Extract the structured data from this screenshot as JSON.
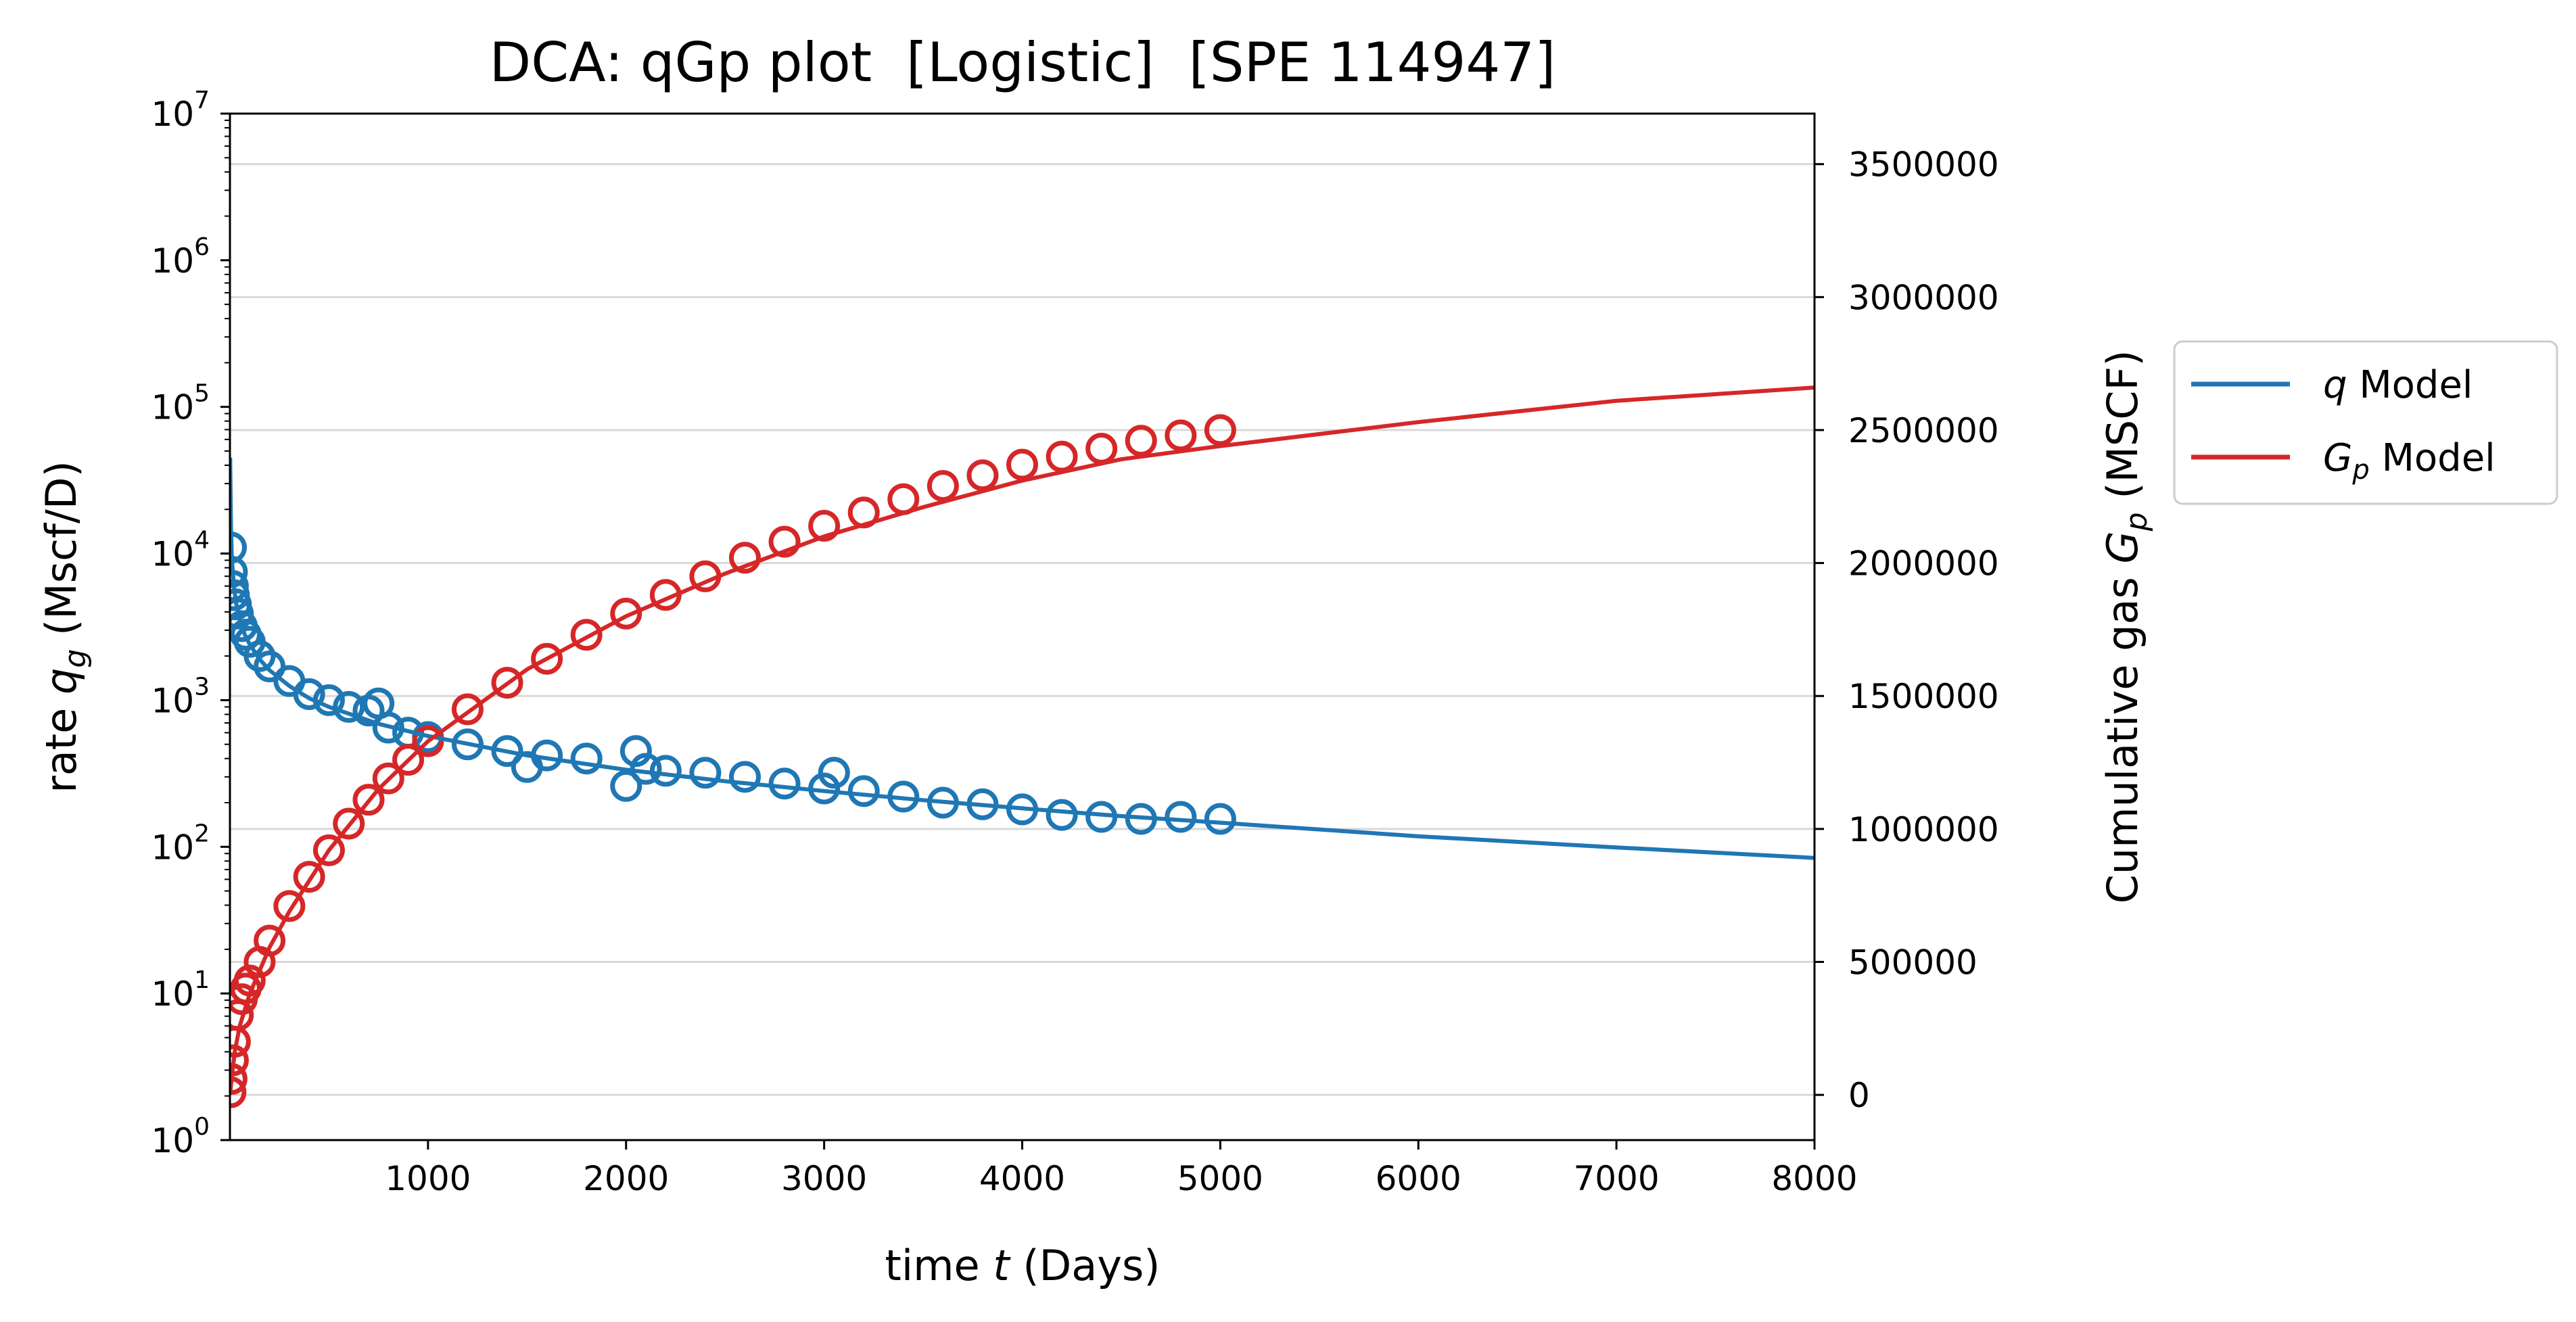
{
  "chart_data": {
    "type": "line",
    "title": "DCA: qGp plot  [Logistic]  [SPE 114947]",
    "xlabel": {
      "pre": "time ",
      "var": "t",
      "post": " (Days)"
    },
    "ylabel_left": {
      "pre": "rate ",
      "var": "q",
      "sub": "g",
      "post": " (Mscf/D)"
    },
    "ylabel_right": {
      "pre": "Cumulative gas ",
      "var": "G",
      "sub": "p",
      "post": " (MSCF)"
    },
    "xlim": [
      0,
      8000
    ],
    "x_ticks": [
      "1000",
      "2000",
      "3000",
      "4000",
      "5000",
      "6000",
      "7000",
      "8000"
    ],
    "y_left_scale": "log",
    "y_left_lim": [
      1,
      10000000
    ],
    "y_left_ticks": [
      {
        "base": "10",
        "exp": "0"
      },
      {
        "base": "10",
        "exp": "1"
      },
      {
        "base": "10",
        "exp": "2"
      },
      {
        "base": "10",
        "exp": "3"
      },
      {
        "base": "10",
        "exp": "4"
      },
      {
        "base": "10",
        "exp": "5"
      },
      {
        "base": "10",
        "exp": "6"
      },
      {
        "base": "10",
        "exp": "7"
      }
    ],
    "y_right_lim": [
      -170000,
      3690000
    ],
    "y_right_ticks": [
      "0",
      "500000",
      "1000000",
      "1500000",
      "2000000",
      "2500000",
      "3000000",
      "3500000"
    ],
    "grid": "horizontal, right axis",
    "legend": {
      "placement": "outside right",
      "entries": [
        {
          "var": "q",
          "sub": "",
          "text": " Model",
          "color": "#1f77b4"
        },
        {
          "var": "G",
          "sub": "p",
          "text": " Model",
          "color": "#d62728"
        }
      ]
    },
    "series": [
      {
        "name": "q Model",
        "axis": "left",
        "kind": "line",
        "color": "#1f77b4",
        "x": [
          1,
          5,
          10,
          20,
          30,
          50,
          75,
          100,
          150,
          200,
          300,
          400,
          500,
          750,
          1000,
          1500,
          2000,
          2500,
          3000,
          3500,
          4000,
          4500,
          5000,
          6000,
          7000,
          8000
        ],
        "y": [
          45000,
          15000,
          9000,
          6000,
          4700,
          3500,
          2800,
          2400,
          1900,
          1600,
          1250,
          1030,
          900,
          690,
          570,
          420,
          335,
          280,
          240,
          208,
          183,
          162,
          146,
          118,
          99,
          84
        ]
      },
      {
        "name": "Gp Model",
        "axis": "right",
        "kind": "line",
        "color": "#d62728",
        "x": [
          0,
          10,
          25,
          50,
          100,
          200,
          300,
          500,
          750,
          1000,
          1500,
          2000,
          2500,
          3000,
          3500,
          4000,
          4500,
          5000,
          6000,
          7000,
          8000
        ],
        "y": [
          0,
          70000,
          165000,
          260000,
          380000,
          555000,
          690000,
          920000,
          1150000,
          1330000,
          1600000,
          1800000,
          1960000,
          2100000,
          2210000,
          2310000,
          2390000,
          2440000,
          2530000,
          2610000,
          2660000
        ]
      },
      {
        "name": "q data",
        "axis": "left",
        "kind": "scatter",
        "color": "#1f77b4",
        "x": [
          5,
          10,
          15,
          20,
          30,
          40,
          60,
          80,
          100,
          150,
          200,
          300,
          400,
          500,
          600,
          700,
          750,
          800,
          900,
          1000,
          1200,
          1400,
          1500,
          1600,
          1800,
          2000,
          2050,
          2100,
          2200,
          2400,
          2600,
          2800,
          3000,
          3050,
          3200,
          3400,
          3600,
          3800,
          4000,
          4200,
          4400,
          4600,
          4800,
          5000
        ],
        "y": [
          11000,
          7500,
          6000,
          5200,
          4500,
          3900,
          3200,
          2800,
          2500,
          2000,
          1700,
          1350,
          1100,
          1000,
          900,
          850,
          950,
          650,
          600,
          560,
          500,
          450,
          350,
          420,
          400,
          260,
          450,
          340,
          330,
          320,
          300,
          270,
          250,
          320,
          240,
          220,
          200,
          195,
          180,
          165,
          160,
          155,
          160,
          155
        ]
      },
      {
        "name": "Gp data",
        "axis": "right",
        "kind": "scatter",
        "color": "#d62728",
        "x": [
          3,
          8,
          15,
          25,
          40,
          60,
          80,
          100,
          150,
          200,
          300,
          400,
          500,
          600,
          700,
          800,
          900,
          1000,
          1200,
          1400,
          1600,
          1800,
          2000,
          2200,
          2400,
          2600,
          2800,
          3000,
          3200,
          3400,
          3600,
          3800,
          4000,
          4200,
          4400,
          4600,
          4800,
          5000
        ],
        "y": [
          10000,
          60000,
          130000,
          200000,
          300000,
          360000,
          400000,
          430000,
          500000,
          580000,
          710000,
          820000,
          920000,
          1020000,
          1110000,
          1190000,
          1260000,
          1330000,
          1450000,
          1550000,
          1640000,
          1730000,
          1810000,
          1880000,
          1950000,
          2020000,
          2080000,
          2140000,
          2190000,
          2240000,
          2290000,
          2330000,
          2370000,
          2400000,
          2430000,
          2460000,
          2480000,
          2500000
        ]
      }
    ]
  }
}
